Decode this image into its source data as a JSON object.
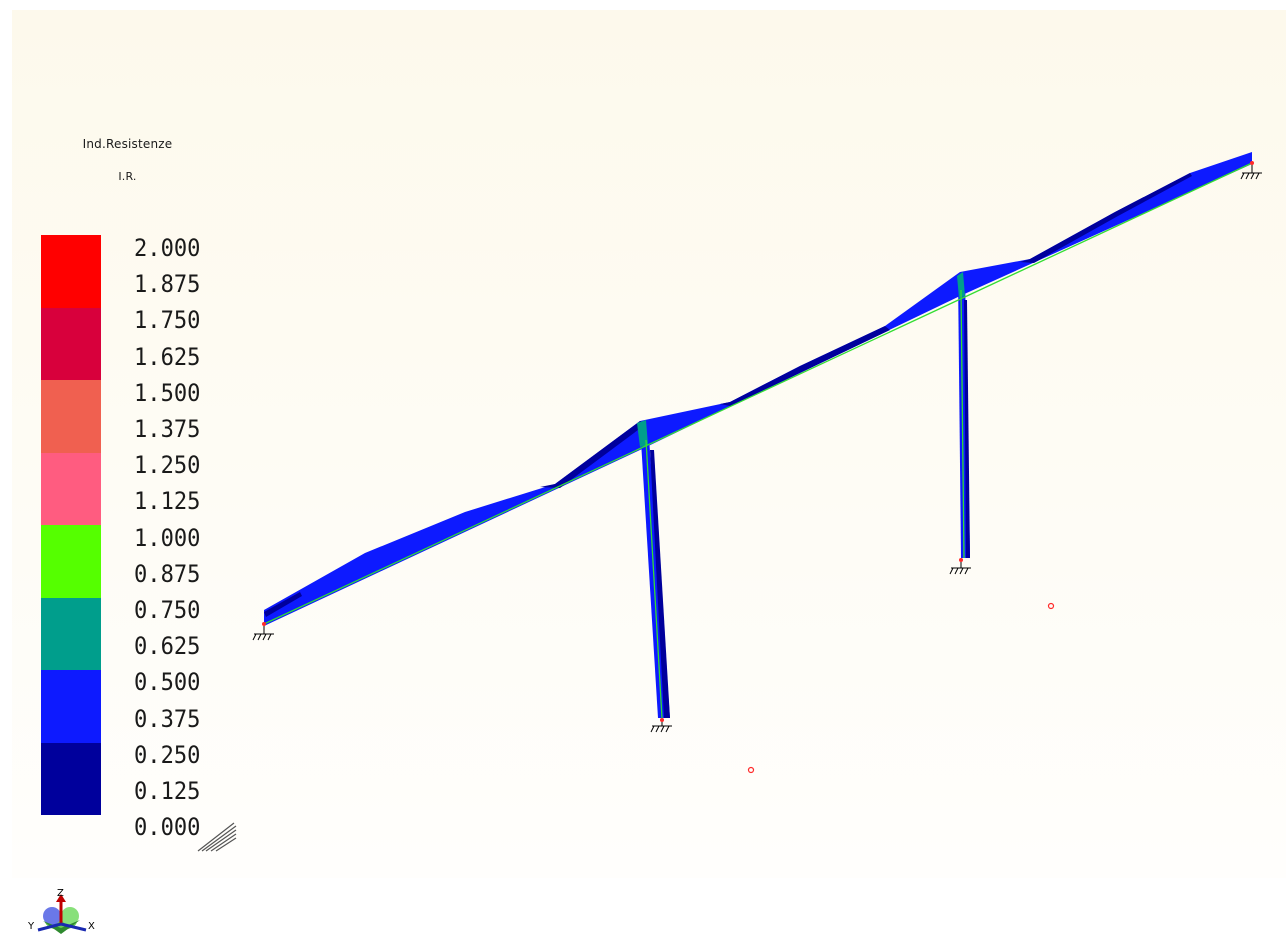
{
  "legend": {
    "title": "Ind.Resistenze",
    "subtitle": "I.R.",
    "colors": [
      "#ff0000",
      "#d8003c",
      "#f06050",
      "#ff5c80",
      "#55ff00",
      "#009e8c",
      "#0d1aff",
      "#00009c"
    ],
    "labels": [
      "2.000",
      "1.875",
      "1.750",
      "1.625",
      "1.500",
      "1.375",
      "1.250",
      "1.125",
      "1.000",
      "0.875",
      "0.750",
      "0.625",
      "0.500",
      "0.375",
      "0.250",
      "0.125",
      "0.000"
    ]
  },
  "structure": {
    "beam_fill": "#0d1aff",
    "beam_dark": "#00009c",
    "column_node_color": "#009e8c",
    "centerline_color": "#33dd33",
    "support_node_color": "#ff2a2a"
  },
  "axes": {
    "z_label": "Z",
    "y_label": "Y",
    "x_label": "X"
  }
}
